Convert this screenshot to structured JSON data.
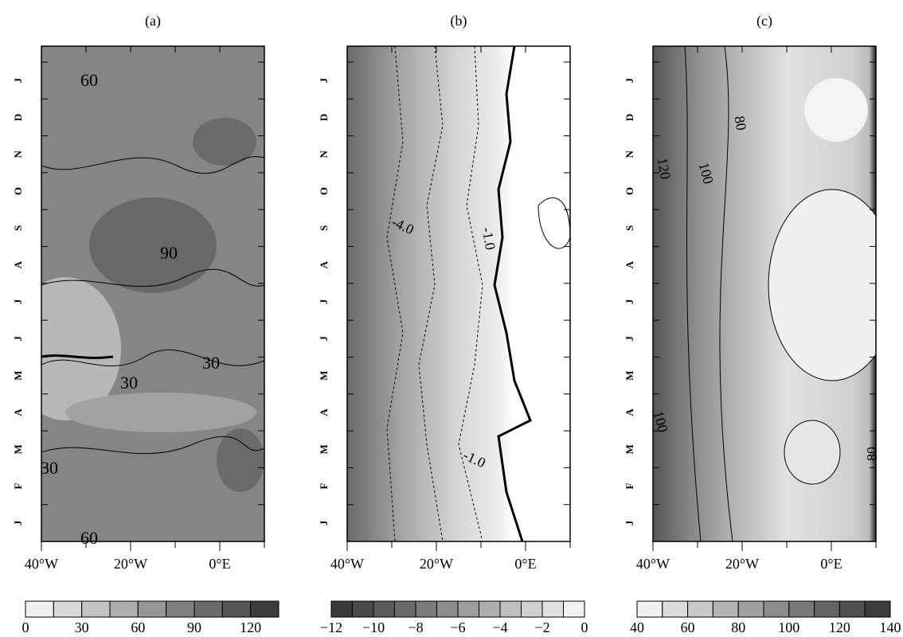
{
  "panels": [
    {
      "title": "(a)",
      "xlim": [
        -40,
        10
      ],
      "xticks": [
        {
          "value": -40,
          "label": "40°W"
        },
        {
          "value": -20,
          "label": "20°W"
        },
        {
          "value": 0,
          "label": "0°E"
        }
      ],
      "months": [
        "J",
        "F",
        "M",
        "A",
        "M",
        "J",
        "J",
        "A",
        "S",
        "O",
        "N",
        "D",
        "J"
      ],
      "contour_labels": [
        "60",
        "90",
        "30",
        "30",
        "30",
        "60"
      ],
      "colorbar": {
        "levels": [
          0,
          15,
          30,
          45,
          60,
          75,
          90,
          105,
          120,
          135
        ],
        "colors": [
          "#f0f0f0",
          "#d9d9d9",
          "#c4c4c4",
          "#adadad",
          "#979797",
          "#808080",
          "#6b6b6b",
          "#555555",
          "#3c3c3c"
        ],
        "ticks": [
          0,
          30,
          60,
          90,
          120
        ]
      }
    },
    {
      "title": "(b)",
      "xlim": [
        -40,
        10
      ],
      "xticks": [
        {
          "value": -40,
          "label": "40°W"
        },
        {
          "value": -20,
          "label": "20°W"
        },
        {
          "value": 0,
          "label": "0°E"
        }
      ],
      "months": [
        "J",
        "F",
        "M",
        "A",
        "M",
        "J",
        "J",
        "A",
        "S",
        "O",
        "N",
        "D",
        "J"
      ],
      "contour_labels": [
        "-4.0",
        "-1.0",
        "-1.0"
      ],
      "colorbar": {
        "levels": [
          -12,
          -11,
          -10,
          -9,
          -8,
          -7,
          -6,
          -5,
          -4,
          -3,
          -2,
          -1,
          0
        ],
        "colors": [
          "#3a3a3a",
          "#4a4a4a",
          "#5a5a5a",
          "#6a6a6a",
          "#7b7b7b",
          "#8c8c8c",
          "#9d9d9d",
          "#aeaeae",
          "#bfbfbf",
          "#d0d0d0",
          "#e1e1e1",
          "#f2f2f2"
        ],
        "ticks": [
          {
            "value": -12,
            "label": "−12"
          },
          {
            "value": -10,
            "label": "−10"
          },
          {
            "value": -8,
            "label": "−8"
          },
          {
            "value": -6,
            "label": "−6"
          },
          {
            "value": -4,
            "label": "−4"
          },
          {
            "value": -2,
            "label": "−2"
          },
          0
        ]
      }
    },
    {
      "title": "(c)",
      "xlim": [
        -40,
        10
      ],
      "xticks": [
        {
          "value": -40,
          "label": "40°W"
        },
        {
          "value": -20,
          "label": "20°W"
        },
        {
          "value": 0,
          "label": "0°E"
        }
      ],
      "months": [
        "J",
        "F",
        "M",
        "A",
        "M",
        "J",
        "J",
        "A",
        "S",
        "O",
        "N",
        "D",
        "J"
      ],
      "contour_labels": [
        "80",
        "100",
        "120",
        "100",
        "80"
      ],
      "colorbar": {
        "levels": [
          40,
          50,
          60,
          70,
          80,
          90,
          100,
          110,
          120,
          130,
          140
        ],
        "colors": [
          "#f0f0f0",
          "#dcdcdc",
          "#c8c8c8",
          "#b4b4b4",
          "#a0a0a0",
          "#8c8c8c",
          "#787878",
          "#646464",
          "#505050",
          "#3c3c3c"
        ],
        "ticks": [
          40,
          60,
          80,
          100,
          120,
          140
        ]
      }
    }
  ]
}
